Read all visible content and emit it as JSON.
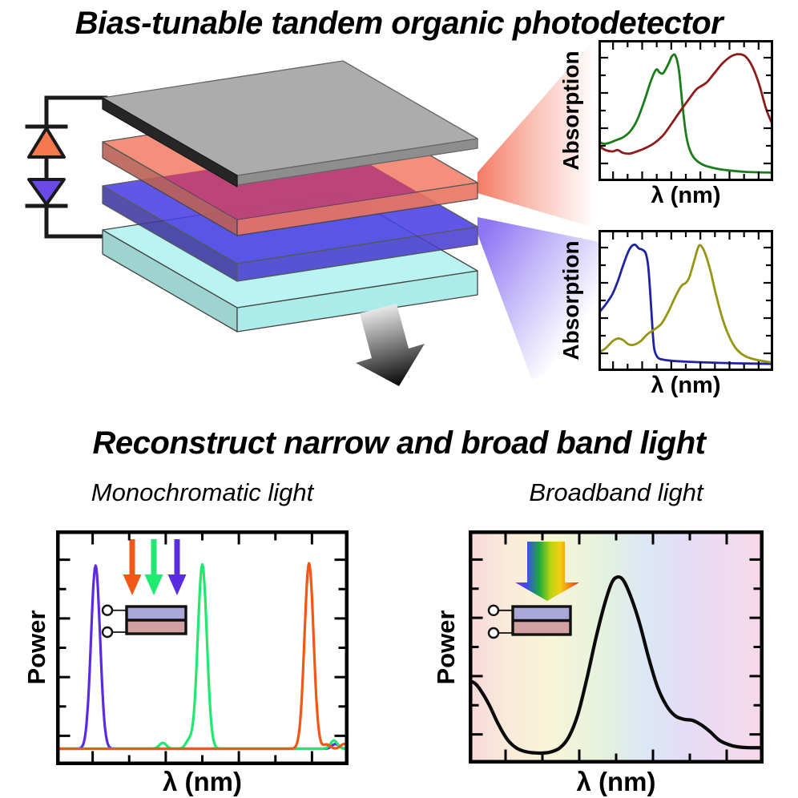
{
  "figure": {
    "title_top": "Bias-tunable tandem organic photodetector",
    "title_bottom": "Reconstruct narrow and broad band light",
    "subtitle_left": "Monochromatic light",
    "subtitle_right": "Broadband light"
  },
  "labels": {
    "absorption": "Absorption",
    "lambda": "λ (nm)",
    "power": "Power"
  },
  "colors": {
    "wire": "#1a1a1a",
    "diode_up": "#f5794e",
    "diode_down": "#6a49e8",
    "outline": "#444444",
    "layer_top_electrode": "#acacac",
    "layer_top_electrode_side": "#8e8e8e",
    "layer_top_electrode_edge": "#262626",
    "layer_front_absorber": "#f2836d",
    "layer_front_absorber_left": "#bb6156",
    "layer_front_absorber_right": "#ea7460",
    "layer_overlap_crimson": "#c23e6c",
    "layer_back_absorber": "#4b40e6",
    "layer_back_absorber_left": "#3f37a0",
    "layer_back_absorber_right": "#4a3ed0",
    "layer_substrate": "#b9f4f2",
    "layer_substrate_left": "#9ed4d0",
    "layer_substrate_right": "#abebe9",
    "inset_top_layer": "#a9a8d8",
    "inset_bottom_layer": "#d2a2a2",
    "frame": "#000000"
  },
  "gradients": {
    "beam_salmon": [
      {
        "o": 0,
        "c": "#f4745c",
        "a": 0.95
      },
      {
        "o": 0.4,
        "c": "#f4745c",
        "a": 0.5
      },
      {
        "o": 0.95,
        "c": "#f4745c",
        "a": 0
      }
    ],
    "beam_violet": [
      {
        "o": 0,
        "c": "#8066f2",
        "a": 0.9
      },
      {
        "o": 0.45,
        "c": "#8066f2",
        "a": 0.45
      },
      {
        "o": 0.95,
        "c": "#8066f2",
        "a": 0
      }
    ],
    "down_arrow": [
      {
        "o": 0,
        "c": "#f5f5f5",
        "a": 1
      },
      {
        "o": 0.45,
        "c": "#8a8a8a",
        "a": 1
      },
      {
        "o": 1,
        "c": "#050505",
        "a": 1
      }
    ],
    "rainbow_arrow": [
      {
        "o": 0,
        "c": "#8a2be2",
        "a": 1
      },
      {
        "o": 0.18,
        "c": "#3b4ee8",
        "a": 1
      },
      {
        "o": 0.38,
        "c": "#1faa3c",
        "a": 1
      },
      {
        "o": 0.55,
        "c": "#b8d414",
        "a": 1
      },
      {
        "o": 0.7,
        "c": "#f2cf10",
        "a": 1
      },
      {
        "o": 0.85,
        "c": "#f08414",
        "a": 1
      },
      {
        "o": 1,
        "c": "#e8280f",
        "a": 1
      }
    ],
    "broadband_bg": [
      {
        "o": 0,
        "c": "#f8d8da",
        "a": 1
      },
      {
        "o": 0.14,
        "c": "#f9ecd9",
        "a": 1
      },
      {
        "o": 0.28,
        "c": "#f8f5d8",
        "a": 1
      },
      {
        "o": 0.44,
        "c": "#e6f2dc",
        "a": 1
      },
      {
        "o": 0.6,
        "c": "#dce7f5",
        "a": 1
      },
      {
        "o": 0.74,
        "c": "#e4dcf6",
        "a": 1
      },
      {
        "o": 0.87,
        "c": "#efdaf0",
        "a": 1
      },
      {
        "o": 1,
        "c": "#f7d9e6",
        "a": 1
      }
    ]
  },
  "chart_data": [
    {
      "id": "abs_front",
      "type": "line",
      "title": "",
      "xlabel": "λ (nm)",
      "ylabel": "Absorption",
      "x_axis": {
        "labeled": false,
        "range": [
          0,
          1
        ]
      },
      "y_axis": {
        "labeled": false,
        "range": [
          0,
          1
        ]
      },
      "grid": false,
      "series": [
        {
          "name": "front-cell donor absorption",
          "color": "#1a7d1a",
          "points": [
            [
              0,
              0.28
            ],
            [
              0.03,
              0.265
            ],
            [
              0.06,
              0.27
            ],
            [
              0.1,
              0.29
            ],
            [
              0.14,
              0.31
            ],
            [
              0.18,
              0.35
            ],
            [
              0.22,
              0.43
            ],
            [
              0.26,
              0.56
            ],
            [
              0.3,
              0.71
            ],
            [
              0.33,
              0.79
            ],
            [
              0.35,
              0.77
            ],
            [
              0.37,
              0.765
            ],
            [
              0.4,
              0.83
            ],
            [
              0.42,
              0.885
            ],
            [
              0.44,
              0.89
            ],
            [
              0.46,
              0.79
            ],
            [
              0.48,
              0.55
            ],
            [
              0.5,
              0.34
            ],
            [
              0.52,
              0.23
            ],
            [
              0.55,
              0.16
            ],
            [
              0.6,
              0.115
            ],
            [
              0.67,
              0.09
            ],
            [
              0.75,
              0.075
            ],
            [
              0.85,
              0.065
            ],
            [
              1,
              0.06
            ]
          ]
        },
        {
          "name": "front-cell acceptor absorption",
          "color": "#8e1b1b",
          "points": [
            [
              0,
              0.25
            ],
            [
              0.04,
              0.22
            ],
            [
              0.08,
              0.21
            ],
            [
              0.11,
              0.22
            ],
            [
              0.14,
              0.2
            ],
            [
              0.18,
              0.195
            ],
            [
              0.22,
              0.21
            ],
            [
              0.27,
              0.235
            ],
            [
              0.32,
              0.27
            ],
            [
              0.37,
              0.325
            ],
            [
              0.42,
              0.41
            ],
            [
              0.47,
              0.5
            ],
            [
              0.52,
              0.585
            ],
            [
              0.56,
              0.65
            ],
            [
              0.59,
              0.675
            ],
            [
              0.62,
              0.7
            ],
            [
              0.66,
              0.76
            ],
            [
              0.71,
              0.835
            ],
            [
              0.76,
              0.885
            ],
            [
              0.8,
              0.9
            ],
            [
              0.84,
              0.885
            ],
            [
              0.88,
              0.815
            ],
            [
              0.92,
              0.685
            ],
            [
              0.96,
              0.51
            ],
            [
              1,
              0.39
            ]
          ]
        }
      ]
    },
    {
      "id": "abs_back",
      "type": "line",
      "title": "",
      "xlabel": "λ (nm)",
      "ylabel": "Absorption",
      "x_axis": {
        "labeled": false,
        "range": [
          0,
          1
        ]
      },
      "y_axis": {
        "labeled": false,
        "range": [
          0,
          1
        ]
      },
      "grid": false,
      "series": [
        {
          "name": "back-cell donor absorption",
          "color": "#1f23a0",
          "points": [
            [
              0,
              0.41
            ],
            [
              0.04,
              0.47
            ],
            [
              0.08,
              0.545
            ],
            [
              0.11,
              0.635
            ],
            [
              0.14,
              0.745
            ],
            [
              0.17,
              0.845
            ],
            [
              0.19,
              0.885
            ],
            [
              0.21,
              0.895
            ],
            [
              0.23,
              0.87
            ],
            [
              0.25,
              0.86
            ],
            [
              0.27,
              0.835
            ],
            [
              0.285,
              0.74
            ],
            [
              0.3,
              0.48
            ],
            [
              0.31,
              0.28
            ],
            [
              0.32,
              0.15
            ],
            [
              0.34,
              0.095
            ],
            [
              0.37,
              0.08
            ],
            [
              0.42,
              0.072
            ],
            [
              0.5,
              0.066
            ],
            [
              0.62,
              0.06
            ],
            [
              0.8,
              0.054
            ],
            [
              1,
              0.05
            ]
          ]
        },
        {
          "name": "back-cell acceptor absorption",
          "color": "#95950f",
          "points": [
            [
              0,
              0.13
            ],
            [
              0.04,
              0.16
            ],
            [
              0.08,
              0.21
            ],
            [
              0.11,
              0.23
            ],
            [
              0.14,
              0.22
            ],
            [
              0.17,
              0.19
            ],
            [
              0.2,
              0.185
            ],
            [
              0.24,
              0.21
            ],
            [
              0.28,
              0.26
            ],
            [
              0.32,
              0.295
            ],
            [
              0.36,
              0.335
            ],
            [
              0.4,
              0.42
            ],
            [
              0.43,
              0.5
            ],
            [
              0.46,
              0.575
            ],
            [
              0.48,
              0.61
            ],
            [
              0.5,
              0.625
            ],
            [
              0.52,
              0.665
            ],
            [
              0.55,
              0.79
            ],
            [
              0.57,
              0.875
            ],
            [
              0.585,
              0.89
            ],
            [
              0.61,
              0.835
            ],
            [
              0.64,
              0.715
            ],
            [
              0.67,
              0.555
            ],
            [
              0.71,
              0.37
            ],
            [
              0.75,
              0.24
            ],
            [
              0.79,
              0.155
            ],
            [
              0.84,
              0.105
            ],
            [
              0.9,
              0.08
            ],
            [
              1,
              0.058
            ]
          ]
        }
      ]
    },
    {
      "id": "mono",
      "type": "line",
      "title": "Monochromatic light",
      "xlabel": "λ (nm)",
      "ylabel": "Power",
      "x_axis": {
        "labeled": false,
        "range": [
          0,
          1
        ]
      },
      "y_axis": {
        "labeled": false,
        "range": [
          0,
          1
        ]
      },
      "grid": false,
      "baseline": 0.07,
      "series": [
        {
          "name": "violet laser line",
          "color": "#5a2be0",
          "peak": {
            "center": 0.135,
            "height": 0.78,
            "width": 0.0155
          },
          "bumps": [
            [
              0.955,
              0.02
            ]
          ]
        },
        {
          "name": "green laser line",
          "color": "#1fe96f",
          "peak": {
            "center": 0.5,
            "height": 0.785,
            "width": 0.0155
          },
          "bumps": [
            [
              0.365,
              0.025
            ],
            [
              0.455,
              0.035
            ],
            [
              0.95,
              0.035
            ]
          ]
        },
        {
          "name": "orange laser line",
          "color": "#f25716",
          "peak": {
            "center": 0.865,
            "height": 0.79,
            "width": 0.0155
          },
          "bumps": [
            [
              0.925,
              0.018
            ],
            [
              0.985,
              0.02
            ]
          ]
        }
      ],
      "arrows": [
        {
          "name": "orange-light-arrow",
          "color": "#f25716"
        },
        {
          "name": "green-light-arrow",
          "color": "#1fe96f"
        },
        {
          "name": "violet-light-arrow",
          "color": "#5a2be0"
        }
      ]
    },
    {
      "id": "broad",
      "type": "line",
      "title": "Broadband light",
      "xlabel": "λ (nm)",
      "ylabel": "Power",
      "x_axis": {
        "labeled": false,
        "range": [
          0,
          1
        ]
      },
      "y_axis": {
        "labeled": false,
        "range": [
          0,
          1
        ]
      },
      "grid": false,
      "series": [
        {
          "name": "reconstructed broadband spectrum",
          "color": "#0a0a0a",
          "points": [
            [
              0,
              0.355
            ],
            [
              0.02,
              0.345
            ],
            [
              0.04,
              0.315
            ],
            [
              0.07,
              0.25
            ],
            [
              0.1,
              0.17
            ],
            [
              0.13,
              0.105
            ],
            [
              0.16,
              0.068
            ],
            [
              0.19,
              0.052
            ],
            [
              0.22,
              0.046
            ],
            [
              0.25,
              0.045
            ],
            [
              0.28,
              0.05
            ],
            [
              0.31,
              0.068
            ],
            [
              0.34,
              0.115
            ],
            [
              0.37,
              0.21
            ],
            [
              0.4,
              0.36
            ],
            [
              0.43,
              0.53
            ],
            [
              0.46,
              0.68
            ],
            [
              0.485,
              0.775
            ],
            [
              0.505,
              0.8
            ],
            [
              0.525,
              0.785
            ],
            [
              0.55,
              0.715
            ],
            [
              0.58,
              0.6
            ],
            [
              0.61,
              0.455
            ],
            [
              0.64,
              0.33
            ],
            [
              0.67,
              0.25
            ],
            [
              0.7,
              0.205
            ],
            [
              0.73,
              0.19
            ],
            [
              0.76,
              0.185
            ],
            [
              0.79,
              0.165
            ],
            [
              0.82,
              0.135
            ],
            [
              0.85,
              0.1
            ],
            [
              0.88,
              0.082
            ],
            [
              0.91,
              0.072
            ],
            [
              0.95,
              0.068
            ],
            [
              1,
              0.068
            ]
          ]
        }
      ]
    }
  ]
}
